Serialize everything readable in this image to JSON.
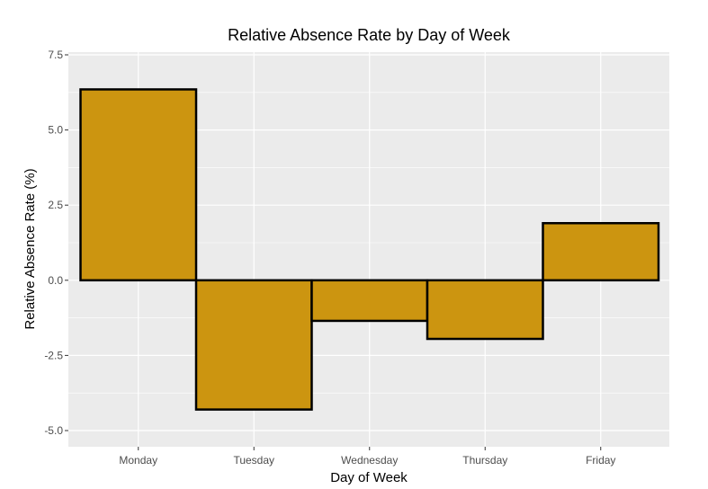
{
  "chart_data": {
    "type": "bar",
    "title": "Relative Absence Rate by Day of Week",
    "xlabel": "Day of Week",
    "ylabel": "Relative Absence Rate (%)",
    "categories": [
      "Monday",
      "Tuesday",
      "Wednesday",
      "Thursday",
      "Friday"
    ],
    "values": [
      6.35,
      -4.3,
      -1.35,
      -1.95,
      1.9
    ],
    "ylim": [
      -5.6,
      7.5
    ],
    "yticks": [
      -5.0,
      -2.5,
      0.0,
      2.5,
      5.0,
      7.5
    ],
    "ytick_labels": [
      "-5.0",
      "-2.5",
      "0.0",
      "2.5",
      "5.0",
      "7.5"
    ],
    "grid": true,
    "bar_color": "#CC9510",
    "bar_edge_color": "#000000",
    "panel_background": "#EBEBEB",
    "grid_color": "#FFFFFF"
  }
}
